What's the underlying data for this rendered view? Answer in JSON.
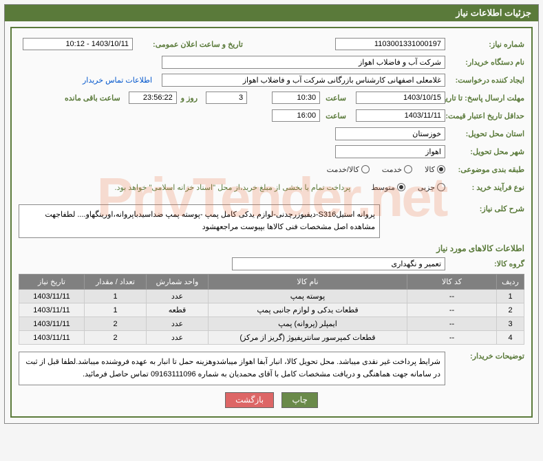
{
  "panel_title": "جزئیات اطلاعات نیاز",
  "labels": {
    "need_no": "شماره نیاز:",
    "announce_dt": "تاریخ و ساعت اعلان عمومی:",
    "buyer_org": "نام دستگاه خریدار:",
    "requester": "ایجاد کننده درخواست:",
    "deadline": "مهلت ارسال پاسخ: تا تاریخ:",
    "hour": "ساعت",
    "days_and": "روز و",
    "remaining": "ساعت باقی مانده",
    "validity": "حداقل تاریخ اعتبار قیمت: تا تاریخ:",
    "province": "استان محل تحویل:",
    "city": "شهر محل تحویل:",
    "subject_cat": "طبقه بندی موضوعی:",
    "process": "نوع فرآیند خرید :",
    "payment_note": "پرداخت تمام یا بخشی از مبلغ خرید،از محل \"اسناد خزانه اسلامی\" خواهد بود.",
    "general_title": "شرح کلی نیاز:",
    "items_title": "اطلاعات کالاهای مورد نیاز",
    "group": "گروه کالا:",
    "buyer_notes": "توضیحات خریدار:",
    "contact": "اطلاعات تماس خریدار"
  },
  "values": {
    "need_no": "1103001331000197",
    "announce_dt": "1403/10/11 - 10:12",
    "buyer_org": "شرکت آب و فاضلاب اهواز",
    "requester": "غلامعلی اصفهانی کارشناس بازرگانی شرکت آب و فاضلاب اهواز",
    "deadline_date": "1403/10/15",
    "deadline_time": "10:30",
    "remaining_days": "3",
    "remaining_time": "23:56:22",
    "validity_date": "1403/11/11",
    "validity_time": "16:00",
    "province": "خوزستان",
    "city": "اهواز",
    "group": "تعمیر و نگهداری",
    "general_desc": "پروانه استیلS316-دیفیوزرچدنی-لوازم یدکی کامل پمپ -پوسته پمپ ضداسیدباپروانه،اورینگهاو.... لطفاجهت مشاهده اصل مشخصات فنی کالاها بپیوست مراجعهشود",
    "buyer_notes": "شرایط پرداخت غیر نقدی میباشد. محل تحویل کالا، انبار آبفا اهواز میباشدوهزینه حمل تا انبار به عهده فروشنده میباشد.لطفا قبل از ثبت در سامانه جهت هماهنگی و دریافت مشخصات کامل با آقای  محمدیان به شماره 09163111096 تماس حاصل فرمائید."
  },
  "radios": {
    "subject": [
      {
        "label": "کالا",
        "checked": true
      },
      {
        "label": "خدمت",
        "checked": false
      },
      {
        "label": "کالا/خدمت",
        "checked": false
      }
    ],
    "process": [
      {
        "label": "جزیی",
        "checked": false
      },
      {
        "label": "متوسط",
        "checked": true
      }
    ]
  },
  "table": {
    "headers": [
      "ردیف",
      "کد کالا",
      "نام کالا",
      "واحد شمارش",
      "تعداد / مقدار",
      "تاریخ نیاز"
    ],
    "rows": [
      [
        "1",
        "--",
        "پوسته پمپ",
        "عدد",
        "1",
        "1403/11/11"
      ],
      [
        "2",
        "--",
        "قطعات یدکی و لوازم جانبی پمپ",
        "قطعه",
        "1",
        "1403/11/11"
      ],
      [
        "3",
        "--",
        "ایمپلر (پروانه) پمپ",
        "عدد",
        "2",
        "1403/11/11"
      ],
      [
        "4",
        "--",
        "قطعات کمپرسور سانتریفیوژ (گریز از مرکز)",
        "عدد",
        "2",
        "1403/11/11"
      ]
    ],
    "col_widths": [
      "40px",
      "130px",
      "auto",
      "90px",
      "90px",
      "95px"
    ]
  },
  "buttons": {
    "print": "چاپ",
    "back": "بازگشت"
  },
  "watermark": "PrivTender.net"
}
